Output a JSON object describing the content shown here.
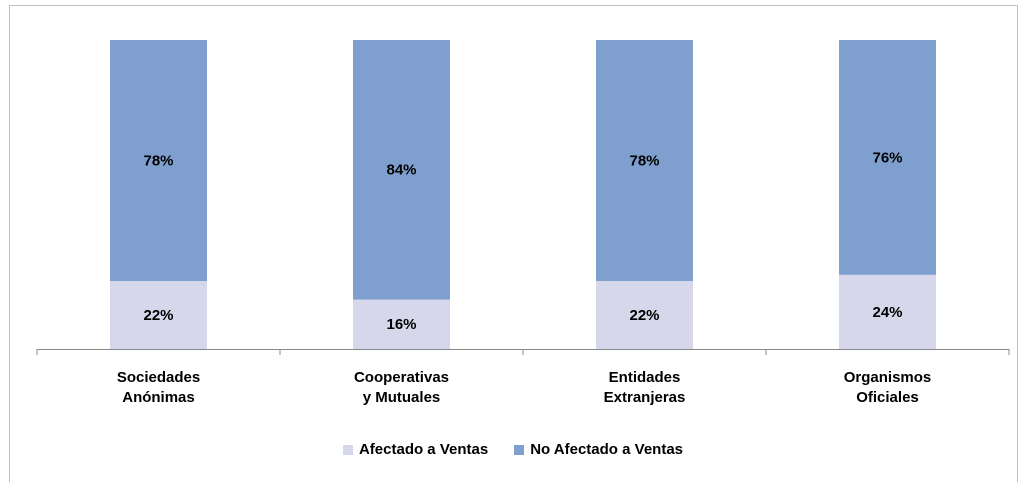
{
  "chart_data": {
    "type": "stacked_bar",
    "categories": [
      "Sociedades\nAnónimas",
      "Cooperativas\ny Mutuales",
      "Entidades\nExtranjeras",
      "Organismos\nOficiales"
    ],
    "series": [
      {
        "name": "Afectado a Ventas",
        "color": "#d6d7ea",
        "values": [
          22,
          16,
          22,
          24
        ],
        "value_labels": [
          "22%",
          "16%",
          "22%",
          "24%"
        ]
      },
      {
        "name": "No Afectado a Ventas",
        "color": "#7f9fcf",
        "values": [
          78,
          84,
          78,
          76
        ],
        "value_labels": [
          "78%",
          "84%",
          "78%",
          "76%"
        ]
      }
    ],
    "ylim": [
      0,
      100
    ],
    "legend": "bottom"
  }
}
